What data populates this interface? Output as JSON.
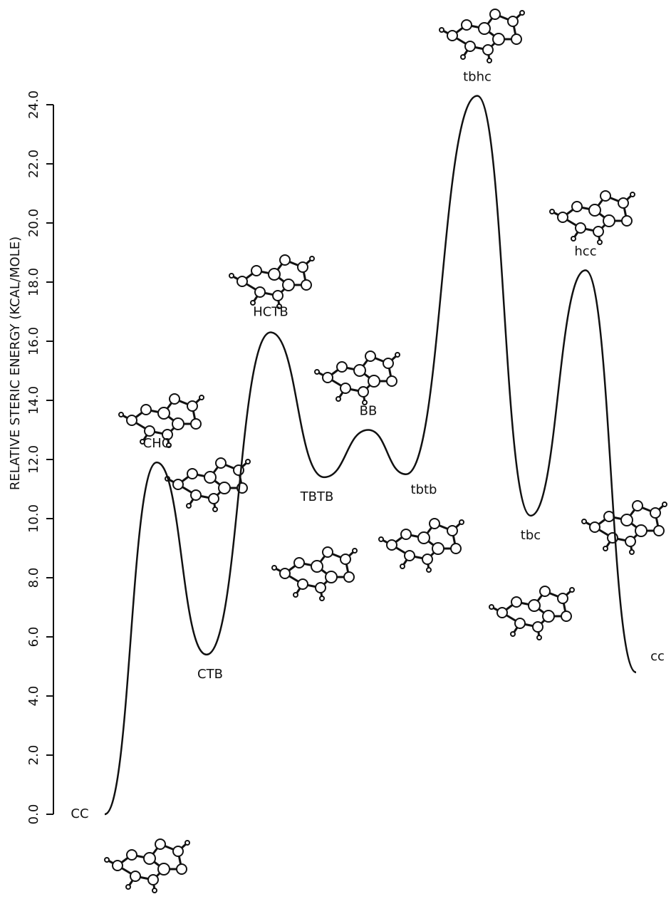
{
  "chart_data": {
    "type": "line",
    "y_label": "RELATIVE STERIC ENERGY (KCAL/MOLE)",
    "categories": [
      "CC",
      "CHC",
      "CTB",
      "HCTB",
      "TBTB",
      "BB",
      "tbtb",
      "tbhc",
      "tbc",
      "hcc",
      "cc"
    ],
    "values": [
      0,
      11.9,
      5.4,
      16.3,
      11.4,
      13.0,
      11.5,
      24.3,
      10.1,
      18.4,
      4.8
    ],
    "color": "#111111",
    "ylim": [
      0,
      24
    ],
    "yticks": [
      {
        "value": 0,
        "label": "0.0"
      },
      {
        "value": 2,
        "label": "2.0"
      },
      {
        "value": 4,
        "label": "4.0"
      },
      {
        "value": 6,
        "label": "6.0"
      },
      {
        "value": 8,
        "label": "8.0"
      },
      {
        "value": 10,
        "label": "10.0"
      },
      {
        "value": 12,
        "label": "12.0"
      },
      {
        "value": 14,
        "label": "14.0"
      },
      {
        "value": 16,
        "label": "16.0"
      },
      {
        "value": 18,
        "label": "18.0"
      },
      {
        "value": 20,
        "label": "20.0"
      },
      {
        "value": 22,
        "label": "22.0"
      },
      {
        "value": 24,
        "label": "24.0"
      }
    ]
  }
}
